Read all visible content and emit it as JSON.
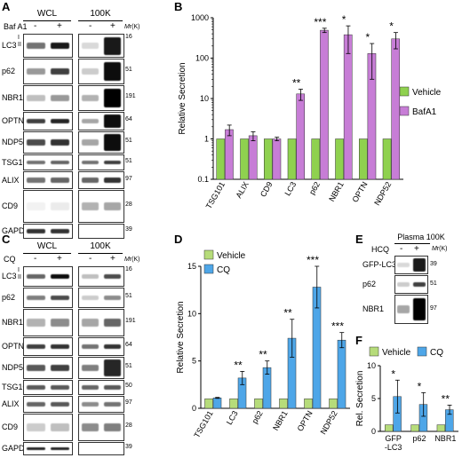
{
  "panels": {
    "A": "A",
    "B": "B",
    "C": "C",
    "D": "D",
    "E": "E",
    "F": "F"
  },
  "blotA": {
    "col_headers": [
      "WCL",
      "100K"
    ],
    "treatment": "Baf A1",
    "signs": [
      "-",
      "+",
      "-",
      "+"
    ],
    "mw_unit": "M",
    "mw_unit_suffix": "r(K)",
    "rows": [
      {
        "label": "LC3",
        "sub": [
          "I",
          "II"
        ],
        "mw": "16"
      },
      {
        "label": "p62",
        "mw": "51"
      },
      {
        "label": "NBR1",
        "mw": "191"
      },
      {
        "label": "OPTN",
        "mw": "64"
      },
      {
        "label": "NDP52",
        "mw": "51"
      },
      {
        "label": "TSG101",
        "mw": "51"
      },
      {
        "label": "ALIX",
        "mw": "97"
      },
      {
        "label": "CD9",
        "mw": "28"
      },
      {
        "label": "GAPDH",
        "mw": "39"
      }
    ]
  },
  "blotC": {
    "col_headers": [
      "WCL",
      "100K"
    ],
    "treatment": "CQ",
    "signs": [
      "-",
      "+",
      "-",
      "+"
    ],
    "mw_unit": "M",
    "mw_unit_suffix": "r(K)",
    "rows": [
      {
        "label": "LC3",
        "sub": [
          "I",
          "II"
        ],
        "mw": "16"
      },
      {
        "label": "p62",
        "mw": "51"
      },
      {
        "label": "NBR1",
        "mw": "191"
      },
      {
        "label": "OPTN",
        "mw": "64"
      },
      {
        "label": "NDP52",
        "mw": "51"
      },
      {
        "label": "TSG101",
        "mw": "50"
      },
      {
        "label": "ALIX",
        "mw": "97"
      },
      {
        "label": "CD9",
        "mw": "28"
      },
      {
        "label": "GAPDH",
        "mw": "39"
      }
    ]
  },
  "blotE": {
    "col_header": "Plasma 100K",
    "treatment": "HCQ",
    "signs": [
      "-",
      "+"
    ],
    "mw_unit": "M",
    "mw_unit_suffix": "r(K)",
    "rows": [
      {
        "label": "GFP-LC3",
        "mw": "39"
      },
      {
        "label": "p62",
        "mw": "51"
      },
      {
        "label": "NBR1",
        "mw": "97"
      }
    ]
  },
  "chart_data": [
    {
      "panel": "B",
      "type": "bar",
      "ylabel": "Relative Secretion",
      "yscale": "log",
      "ylim": [
        0.1,
        1000
      ],
      "yticks": [
        "0.1",
        "1",
        "10",
        "100",
        "1000"
      ],
      "categories": [
        "TSG101",
        "ALIX",
        "CD9",
        "LC3",
        "p62",
        "NBR1",
        "OPTN",
        "NDP52"
      ],
      "series": [
        {
          "name": "Vehicle",
          "color": "#8fd14f",
          "values": [
            1,
            1,
            1,
            1,
            1,
            1,
            1,
            1
          ],
          "errors": [
            0,
            0,
            0,
            0,
            0,
            0,
            0,
            0
          ]
        },
        {
          "name": "BafA1",
          "color": "#c77dd6",
          "values": [
            1.7,
            1.2,
            1.0,
            13,
            490,
            380,
            130,
            300
          ],
          "errors": [
            0.5,
            0.3,
            0.1,
            4,
            60,
            250,
            100,
            130
          ]
        }
      ],
      "significance": [
        "",
        "",
        "",
        "**",
        "***",
        "*",
        "*",
        "*"
      ],
      "legend": "right"
    },
    {
      "panel": "D",
      "type": "bar",
      "ylabel": "Relative Secretion",
      "ylim": [
        0,
        15
      ],
      "yticks": [
        "0",
        "5",
        "10",
        "15"
      ],
      "categories": [
        "TSG101",
        "LC3",
        "p62",
        "NBR1",
        "OPTN",
        "NDP52"
      ],
      "series": [
        {
          "name": "Vehicle",
          "color": "#b6dc7a",
          "values": [
            1,
            1,
            1,
            1,
            1,
            1
          ],
          "errors": [
            0,
            0,
            0,
            0,
            0,
            0
          ]
        },
        {
          "name": "CQ",
          "color": "#4ea6e8",
          "values": [
            1.1,
            3.2,
            4.3,
            7.4,
            12.8,
            7.2
          ],
          "errors": [
            0.05,
            0.7,
            0.7,
            2.0,
            2.2,
            0.8
          ]
        }
      ],
      "significance": [
        "",
        "**",
        "**",
        "**",
        "***",
        "***"
      ],
      "legend": "top-left"
    },
    {
      "panel": "F",
      "type": "bar",
      "ylabel": "Rel. Secretion",
      "ylim": [
        0,
        10
      ],
      "yticks": [
        "0",
        "5",
        "10"
      ],
      "categories": [
        "GFP\n-LC3",
        "p62",
        "NBR1"
      ],
      "series": [
        {
          "name": "Vehicle",
          "color": "#b6dc7a",
          "values": [
            1,
            1,
            1
          ],
          "errors": [
            0,
            0,
            0
          ]
        },
        {
          "name": "CQ",
          "color": "#4ea6e8",
          "values": [
            5.3,
            4.1,
            3.3
          ],
          "errors": [
            2.5,
            1.8,
            0.7
          ]
        }
      ],
      "significance": [
        "*",
        "*",
        "**"
      ],
      "legend": "top"
    }
  ]
}
